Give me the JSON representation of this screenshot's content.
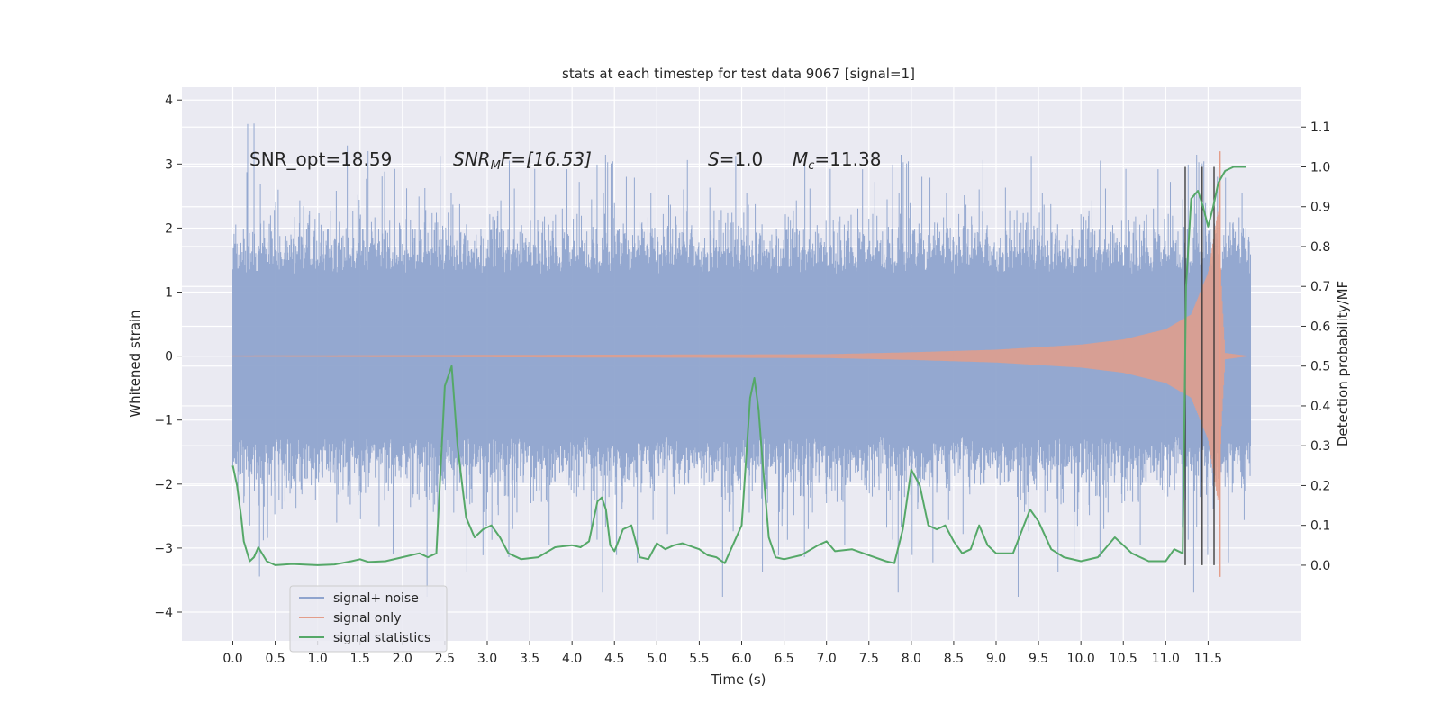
{
  "chart_data": {
    "type": "line",
    "title": "stats at each timestep for test data 9067 [signal=1]",
    "xlabel": "Time (s)",
    "ylabel": "Whitened strain",
    "y2label": "Detection probability/MF",
    "xlim": [
      -0.6,
      12.6
    ],
    "ylim": [
      -4.45,
      4.2
    ],
    "y2lim": [
      -0.19,
      1.2
    ],
    "grid": true,
    "legend_position": "lower-left",
    "x_ticks": [
      "0.0",
      "0.5",
      "1.0",
      "1.5",
      "2.0",
      "2.5",
      "3.0",
      "3.5",
      "4.0",
      "4.5",
      "5.0",
      "5.5",
      "6.0",
      "6.5",
      "7.0",
      "7.5",
      "8.0",
      "8.5",
      "9.0",
      "9.5",
      "10.0",
      "10.5",
      "11.0",
      "11.5"
    ],
    "y_ticks": [
      "4",
      "3",
      "2",
      "1",
      "0",
      "−1",
      "−2",
      "−3",
      "−4"
    ],
    "y2_ticks": [
      "1.1",
      "1.0",
      "0.9",
      "0.8",
      "0.7",
      "0.6",
      "0.5",
      "0.4",
      "0.3",
      "0.2",
      "0.1",
      "0.0"
    ],
    "annotations": {
      "snr_opt": "SNR_opt=18.59",
      "snr_mf_base": "SNR",
      "snr_mf_sub": "M",
      "snr_mf_rest": "F=[16.53]",
      "s_var": "S",
      "s_rest": "=1.0",
      "mc_var": "M",
      "mc_sub": "c",
      "mc_rest": "=11.38"
    },
    "vertical_lines_x": [
      11.23,
      11.43,
      11.57
    ],
    "series": [
      {
        "name": "signal+ noise",
        "color": "#8fa4ce",
        "x_range": [
          0.0,
          12.0
        ],
        "typical_amplitude": 1.75,
        "max": 3.83,
        "min": -4.08
      },
      {
        "name": "signal only",
        "color": "#e39d8a",
        "x_range": [
          0.0,
          12.0
        ],
        "envelope": [
          {
            "x": 0.0,
            "amp": 0.01
          },
          {
            "x": 7.0,
            "amp": 0.03
          },
          {
            "x": 8.0,
            "amp": 0.06
          },
          {
            "x": 9.0,
            "amp": 0.1
          },
          {
            "x": 10.0,
            "amp": 0.18
          },
          {
            "x": 10.5,
            "amp": 0.26
          },
          {
            "x": 11.0,
            "amp": 0.42
          },
          {
            "x": 11.3,
            "amp": 0.65
          },
          {
            "x": 11.5,
            "amp": 1.3
          },
          {
            "x": 11.62,
            "amp": 2.3
          },
          {
            "x": 11.66,
            "amp": 1.0
          },
          {
            "x": 11.7,
            "amp": 0.05
          },
          {
            "x": 12.0,
            "amp": 0.0
          }
        ],
        "max": 3.2,
        "min": -3.45
      },
      {
        "name": "signal statistics",
        "color": "#55a868",
        "axis": "right",
        "x": [
          0.0,
          0.05,
          0.1,
          0.13,
          0.2,
          0.25,
          0.3,
          0.4,
          0.5,
          0.7,
          1.0,
          1.2,
          1.4,
          1.5,
          1.6,
          1.8,
          2.0,
          2.2,
          2.3,
          2.4,
          2.5,
          2.58,
          2.65,
          2.75,
          2.85,
          2.95,
          3.05,
          3.15,
          3.25,
          3.4,
          3.6,
          3.8,
          4.0,
          4.1,
          4.2,
          4.3,
          4.35,
          4.4,
          4.45,
          4.5,
          4.6,
          4.7,
          4.8,
          4.9,
          5.0,
          5.1,
          5.2,
          5.3,
          5.5,
          5.6,
          5.7,
          5.8,
          6.0,
          6.1,
          6.15,
          6.2,
          6.25,
          6.32,
          6.4,
          6.5,
          6.7,
          6.9,
          7.0,
          7.1,
          7.3,
          7.5,
          7.7,
          7.8,
          7.9,
          8.0,
          8.1,
          8.2,
          8.3,
          8.4,
          8.5,
          8.6,
          8.7,
          8.8,
          8.9,
          9.0,
          9.2,
          9.4,
          9.5,
          9.65,
          9.8,
          10.0,
          10.2,
          10.4,
          10.5,
          10.6,
          10.7,
          10.8,
          11.0,
          11.1,
          11.2,
          11.24,
          11.3,
          11.38,
          11.44,
          11.5,
          11.56,
          11.62,
          11.7,
          11.8,
          11.95
        ],
        "y": [
          0.25,
          0.2,
          0.12,
          0.06,
          0.01,
          0.02,
          0.045,
          0.01,
          0.0,
          0.003,
          0.0,
          0.002,
          0.01,
          0.015,
          0.008,
          0.01,
          0.02,
          0.03,
          0.02,
          0.03,
          0.45,
          0.5,
          0.3,
          0.12,
          0.07,
          0.09,
          0.1,
          0.07,
          0.03,
          0.015,
          0.02,
          0.045,
          0.05,
          0.045,
          0.06,
          0.16,
          0.17,
          0.14,
          0.05,
          0.035,
          0.09,
          0.1,
          0.02,
          0.015,
          0.055,
          0.04,
          0.05,
          0.055,
          0.04,
          0.025,
          0.02,
          0.005,
          0.1,
          0.42,
          0.47,
          0.39,
          0.25,
          0.07,
          0.02,
          0.015,
          0.025,
          0.05,
          0.06,
          0.035,
          0.04,
          0.025,
          0.01,
          0.005,
          0.09,
          0.24,
          0.2,
          0.1,
          0.09,
          0.1,
          0.06,
          0.03,
          0.04,
          0.1,
          0.05,
          0.03,
          0.03,
          0.14,
          0.11,
          0.04,
          0.02,
          0.01,
          0.02,
          0.07,
          0.05,
          0.03,
          0.02,
          0.01,
          0.01,
          0.04,
          0.03,
          0.7,
          0.92,
          0.94,
          0.9,
          0.85,
          0.9,
          0.96,
          0.99,
          1.0,
          1.0
        ]
      }
    ]
  }
}
